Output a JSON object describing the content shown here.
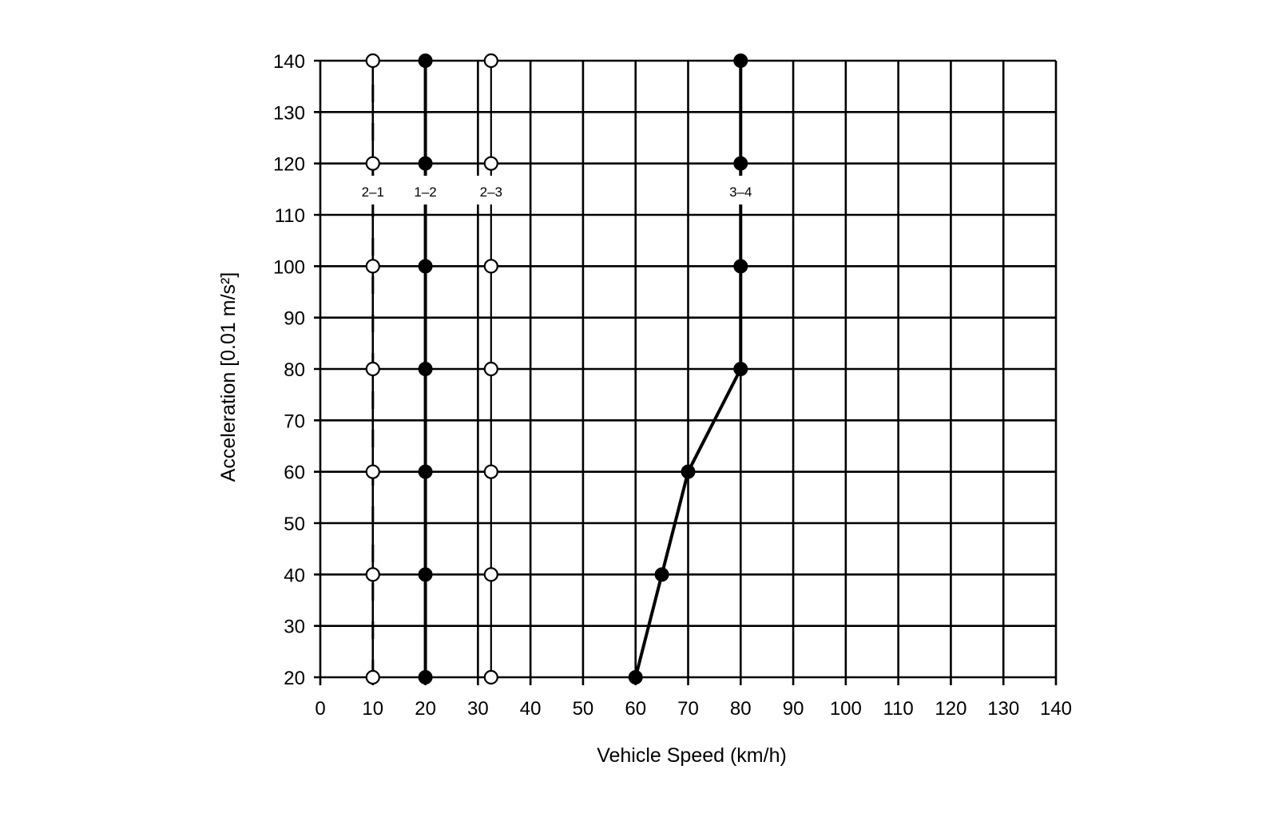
{
  "chart_data": {
    "type": "line",
    "title": "",
    "xlabel": "Vehicle Speed (km/h)",
    "ylabel": "Acceleration [0.01 m/s²]",
    "xlim": [
      0,
      140
    ],
    "ylim": [
      20,
      140
    ],
    "xticks": [
      0,
      10,
      20,
      30,
      40,
      50,
      60,
      70,
      80,
      90,
      100,
      110,
      120,
      130,
      140
    ],
    "yticks": [
      20,
      30,
      40,
      50,
      60,
      70,
      80,
      90,
      100,
      110,
      120,
      130,
      140
    ],
    "grid": true,
    "series": [
      {
        "name": "2–1",
        "style": "dashed",
        "marker": "open-circle",
        "color": "#000000",
        "points": [
          [
            10,
            20
          ],
          [
            10,
            40
          ],
          [
            10,
            60
          ],
          [
            10,
            80
          ],
          [
            10,
            100
          ],
          [
            10,
            120
          ],
          [
            10,
            140
          ]
        ]
      },
      {
        "name": "1–2",
        "style": "solid-thick",
        "marker": "filled-circle",
        "color": "#000000",
        "points": [
          [
            20,
            20
          ],
          [
            20,
            40
          ],
          [
            20,
            60
          ],
          [
            20,
            80
          ],
          [
            20,
            100
          ],
          [
            20,
            120
          ],
          [
            20,
            140
          ]
        ]
      },
      {
        "name": "2–3",
        "style": "solid-thin",
        "marker": "open-circle",
        "color": "#000000",
        "points": [
          [
            32.5,
            20
          ],
          [
            32.5,
            40
          ],
          [
            32.5,
            60
          ],
          [
            32.5,
            80
          ],
          [
            32.5,
            100
          ],
          [
            32.5,
            120
          ],
          [
            32.5,
            140
          ]
        ]
      },
      {
        "name": "3–4",
        "style": "solid-thick",
        "marker": "filled-circle",
        "color": "#000000",
        "points": [
          [
            60,
            20
          ],
          [
            65,
            40
          ],
          [
            70,
            60
          ],
          [
            80,
            80
          ],
          [
            80,
            100
          ],
          [
            80,
            120
          ],
          [
            80,
            140
          ]
        ]
      }
    ]
  }
}
